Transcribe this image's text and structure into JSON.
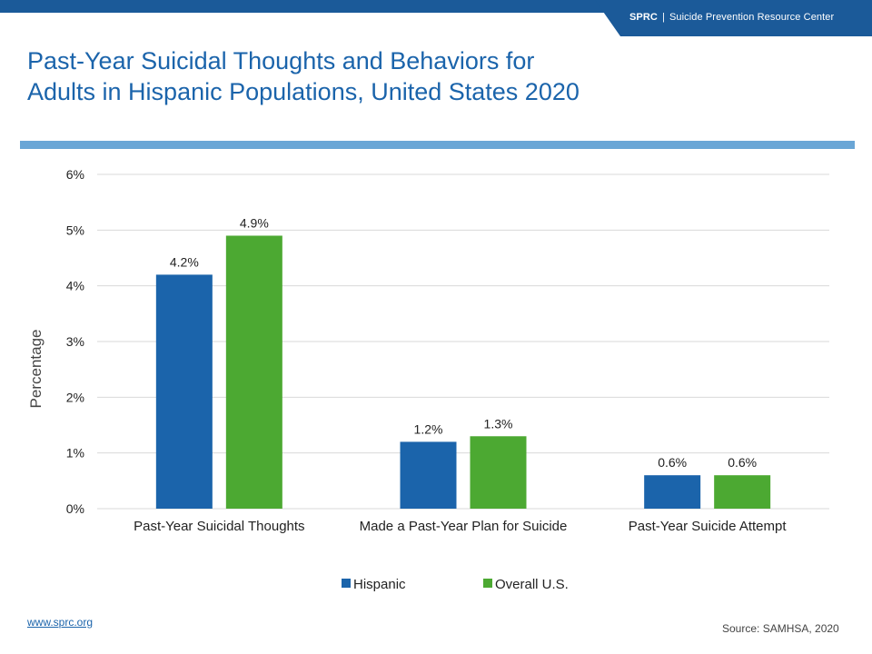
{
  "header": {
    "org": "SPRC",
    "separator": "|",
    "org_full": "Suicide Prevention Resource Center"
  },
  "title_lines": [
    "Past-Year Suicidal Thoughts and Behaviors for",
    "Adults in Hispanic Populations, United States 2020"
  ],
  "footer": {
    "link": "www.sprc.org",
    "source": "Source: SAMHSA, 2020"
  },
  "chart_data": {
    "type": "bar",
    "categories": [
      "Past-Year Suicidal Thoughts",
      "Made a Past-Year Plan for Suicide",
      "Past-Year Suicide Attempt"
    ],
    "series": [
      {
        "name": "Hispanic",
        "values": [
          4.2,
          1.2,
          0.6
        ],
        "labels": [
          "4.2%",
          "1.2%",
          "0.6%"
        ],
        "color": "#1b64ab"
      },
      {
        "name": "Overall U.S.",
        "values": [
          4.9,
          1.3,
          0.6
        ],
        "labels": [
          "4.9%",
          "1.3%",
          "0.6%"
        ],
        "color": "#4ca932"
      }
    ],
    "ylabel": "Percentage",
    "xlabel": "",
    "ylim": [
      0,
      6
    ],
    "yticks": [
      0,
      1,
      2,
      3,
      4,
      5,
      6
    ],
    "ytick_labels": [
      "0%",
      "1%",
      "2%",
      "3%",
      "4%",
      "5%",
      "6%"
    ],
    "grid": true,
    "legend": "bottom"
  }
}
